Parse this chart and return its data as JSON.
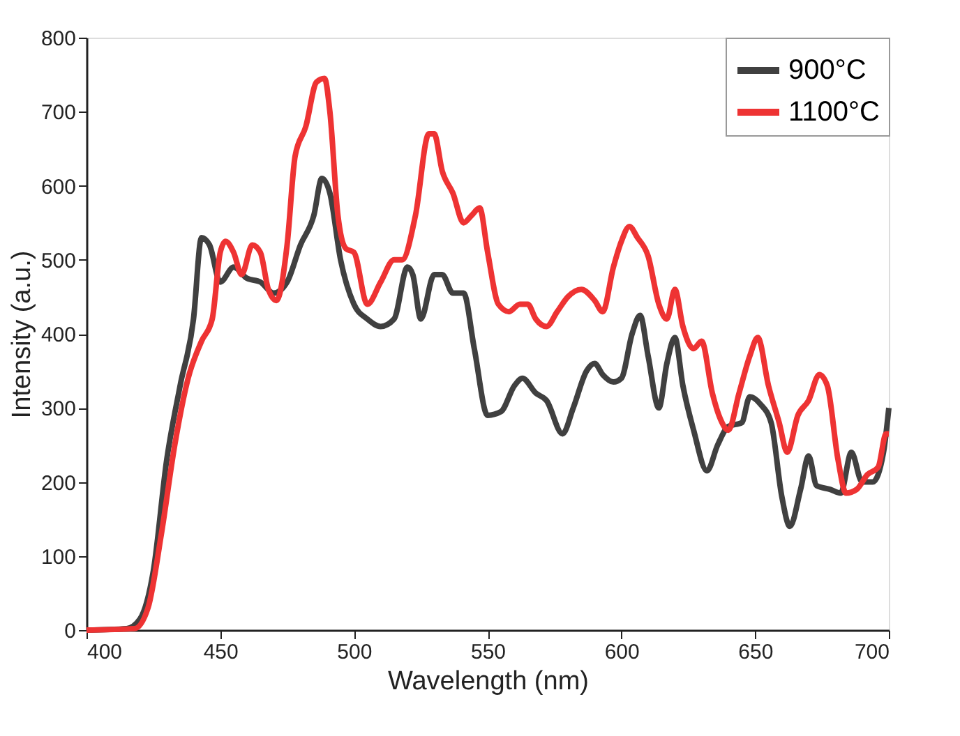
{
  "chart_data": {
    "type": "line",
    "xlabel": "Wavelength (nm)",
    "ylabel": "Intensity (a.u.)",
    "xlim": [
      400,
      700
    ],
    "ylim": [
      0,
      800
    ],
    "xticks": [
      400,
      450,
      500,
      550,
      600,
      650,
      700
    ],
    "yticks": [
      0,
      100,
      200,
      300,
      400,
      500,
      600,
      700,
      800
    ],
    "grid": false,
    "legend": "top right",
    "marker": "none",
    "line_style": "solid",
    "series": [
      {
        "name": "900°C",
        "color": "#404040",
        "x": [
          400,
          415,
          420,
          425,
          430,
          435,
          440,
          443,
          446,
          450,
          455,
          460,
          465,
          470,
          475,
          480,
          485,
          488,
          491,
          495,
          500,
          505,
          510,
          515,
          520,
          522,
          525,
          530,
          533,
          537,
          541,
          545,
          550,
          555,
          560,
          563,
          568,
          572,
          578,
          582,
          587,
          590,
          593,
          597,
          600,
          604,
          607,
          610,
          614,
          617,
          620,
          623,
          627,
          632,
          636,
          640,
          645,
          648,
          652,
          656,
          660,
          663,
          667,
          670,
          673,
          678,
          682,
          686,
          690,
          694,
          698,
          700
        ],
        "values": [
          0,
          2,
          15,
          80,
          230,
          330,
          420,
          530,
          520,
          470,
          490,
          475,
          470,
          455,
          470,
          520,
          560,
          610,
          590,
          500,
          440,
          420,
          410,
          420,
          490,
          480,
          420,
          480,
          480,
          455,
          455,
          380,
          290,
          295,
          330,
          340,
          320,
          310,
          265,
          300,
          350,
          360,
          345,
          335,
          340,
          400,
          425,
          370,
          300,
          360,
          395,
          330,
          270,
          215,
          250,
          275,
          280,
          315,
          305,
          280,
          180,
          140,
          190,
          235,
          195,
          190,
          185,
          240,
          200,
          200,
          240,
          300
        ]
      },
      {
        "name": "1100°C",
        "color": "#ee3333",
        "x": [
          400,
          418,
          423,
          428,
          433,
          438,
          443,
          447,
          450,
          452,
          455,
          458,
          462,
          465,
          468,
          471,
          475,
          478,
          482,
          486,
          489,
          491,
          494,
          497,
          500,
          505,
          510,
          515,
          518,
          523,
          528,
          530,
          533,
          537,
          541,
          544,
          547,
          550,
          554,
          558,
          562,
          565,
          568,
          572,
          576,
          580,
          585,
          590,
          593,
          597,
          600,
          603,
          606,
          610,
          614,
          617,
          620,
          623,
          627,
          630,
          634,
          637,
          640,
          644,
          648,
          651,
          655,
          659,
          662,
          666,
          670,
          674,
          677,
          681,
          684,
          688,
          692,
          696,
          699,
          700
        ],
        "values": [
          0,
          2,
          30,
          130,
          250,
          340,
          390,
          420,
          510,
          525,
          510,
          480,
          520,
          510,
          460,
          445,
          520,
          640,
          680,
          740,
          745,
          700,
          560,
          515,
          510,
          440,
          470,
          500,
          500,
          560,
          670,
          670,
          620,
          590,
          550,
          560,
          570,
          510,
          440,
          430,
          440,
          440,
          420,
          410,
          430,
          450,
          460,
          445,
          430,
          490,
          525,
          545,
          530,
          505,
          440,
          420,
          460,
          410,
          380,
          390,
          320,
          285,
          270,
          320,
          370,
          395,
          330,
          280,
          240,
          290,
          310,
          345,
          330,
          230,
          185,
          190,
          210,
          220,
          265,
          265
        ]
      }
    ]
  }
}
